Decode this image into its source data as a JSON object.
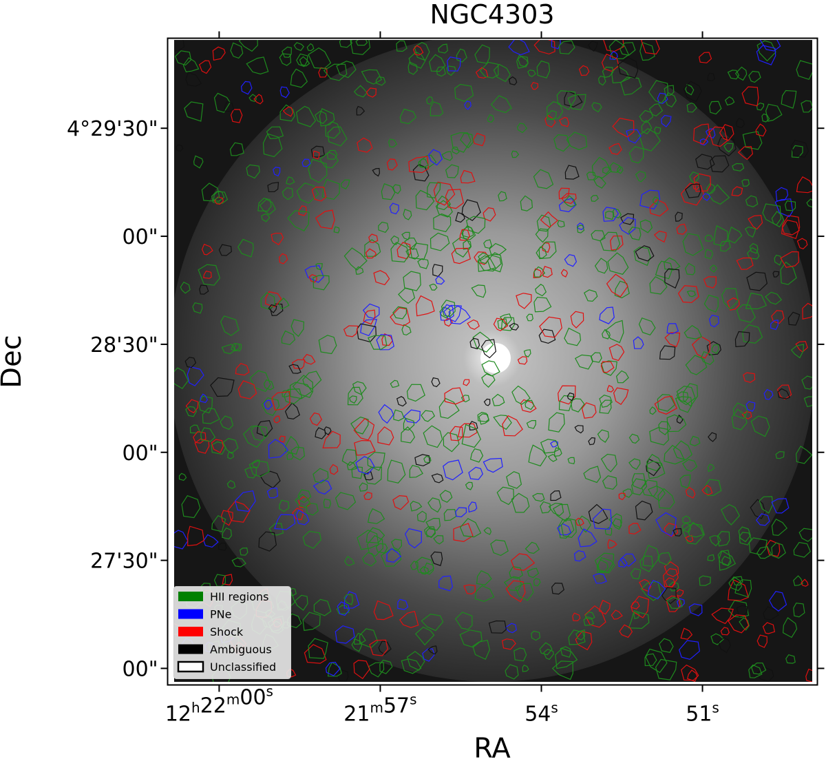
{
  "chart_data": {
    "type": "image",
    "title": "NGC4303",
    "xlabel": "RA",
    "ylabel": "Dec",
    "xlim": [
      60.96,
      48.86
    ],
    "xticks": [
      {
        "value": 60,
        "label": "12h22m00s"
      },
      {
        "value": 57,
        "label": "21m57s"
      },
      {
        "value": 54,
        "label": "54s"
      },
      {
        "value": 51,
        "label": "51s"
      }
    ],
    "ylim": [
      -4.6,
      175
    ],
    "yticks": [
      {
        "value": 150,
        "label": "4°29'30\""
      },
      {
        "value": 120,
        "label": "00\""
      },
      {
        "value": 90,
        "label": "28'30\""
      },
      {
        "value": 60,
        "label": "00\""
      },
      {
        "value": 30,
        "label": "27'30\""
      },
      {
        "value": 0,
        "label": "00\""
      }
    ],
    "legend_loc": "lower left",
    "legend": [
      {
        "name": "HII regions",
        "color": "#008000"
      },
      {
        "name": "PNe",
        "color": "#0000ff"
      },
      {
        "name": "Shock",
        "color": "#ff0000"
      },
      {
        "name": "Ambiguous",
        "color": "#000000"
      },
      {
        "name": "Unclassified",
        "color": "#ffffff"
      }
    ]
  }
}
